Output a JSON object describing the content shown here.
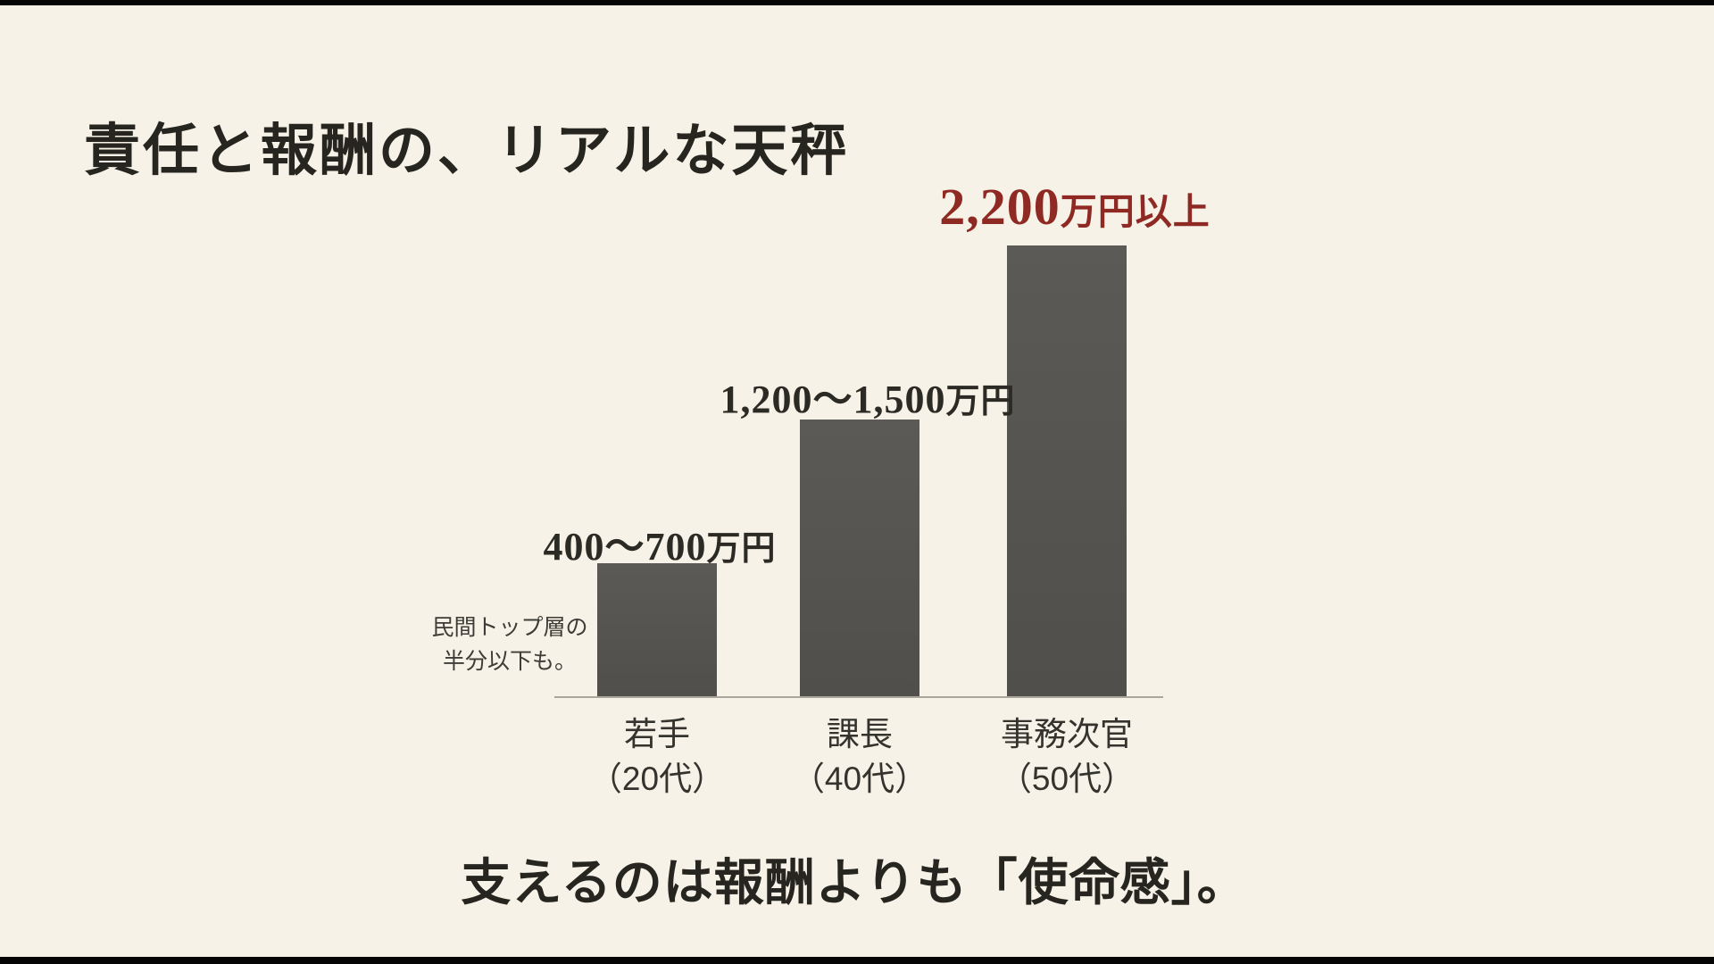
{
  "slide": {
    "title": "責任と報酬の、リアルな天秤",
    "footer_message": "支えるのは報酬よりも「使命感」。",
    "annotation": {
      "line1": "民間トップ層の",
      "line2": "半分以下も。"
    }
  },
  "chart_data": {
    "type": "bar",
    "categories": [
      {
        "name": "若手",
        "age": "（20代）"
      },
      {
        "name": "課長",
        "age": "（40代）"
      },
      {
        "name": "事務次官",
        "age": "（50代）"
      }
    ],
    "value_labels": [
      {
        "num": "400〜700",
        "unit": "万円"
      },
      {
        "num": "1,200〜1,500",
        "unit": "万円"
      },
      {
        "num": "2,200",
        "unit": "万円以上"
      }
    ],
    "values_approx_manen": [
      650,
      1350,
      2200
    ],
    "ylim": [
      0,
      2200
    ],
    "unit": "万円",
    "highlight_index": 2,
    "annotation_target_index": 0,
    "grid": false,
    "legend_position": "none"
  },
  "colors": {
    "background": "#f7f2e7",
    "bar": "#55534f",
    "accent_red": "#8e2a23",
    "text_dark": "#27251f",
    "axis_line": "#aaa69b",
    "letterbox": "#050505"
  }
}
